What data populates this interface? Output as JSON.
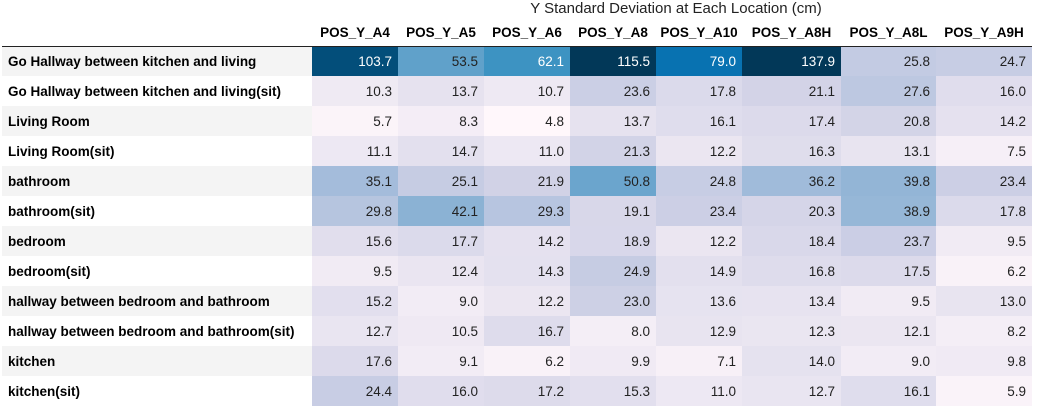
{
  "chart_data": {
    "type": "table",
    "title": "Y Standard Deviation at Each Location (cm)",
    "columns": [
      "POS_Y_A4",
      "POS_Y_A5",
      "POS_Y_A6",
      "POS_Y_A8",
      "POS_Y_A10",
      "POS_Y_A8H",
      "POS_Y_A8L",
      "POS_Y_A9H"
    ],
    "rows": [
      {
        "label": "Go Hallway between kitchen and living",
        "values": [
          103.7,
          53.5,
          62.1,
          115.5,
          79.0,
          137.9,
          25.8,
          24.7
        ]
      },
      {
        "label": "Go Hallway between kitchen and living(sit)",
        "values": [
          10.3,
          13.7,
          10.7,
          23.6,
          17.8,
          21.1,
          27.6,
          16.0
        ]
      },
      {
        "label": "Living Room",
        "values": [
          5.7,
          8.3,
          4.8,
          13.7,
          16.1,
          17.4,
          20.8,
          14.2
        ]
      },
      {
        "label": "Living Room(sit)",
        "values": [
          11.1,
          14.7,
          11.0,
          21.3,
          12.2,
          16.3,
          13.1,
          7.5
        ]
      },
      {
        "label": "bathroom",
        "values": [
          35.1,
          25.1,
          21.9,
          50.8,
          24.8,
          36.2,
          39.8,
          23.4
        ]
      },
      {
        "label": "bathroom(sit)",
        "values": [
          29.8,
          42.1,
          29.3,
          19.1,
          23.4,
          20.3,
          38.9,
          17.8
        ]
      },
      {
        "label": "bedroom",
        "values": [
          15.6,
          17.7,
          14.2,
          18.9,
          12.2,
          18.4,
          23.7,
          9.5
        ]
      },
      {
        "label": "bedroom(sit)",
        "values": [
          9.5,
          12.4,
          14.3,
          24.9,
          14.9,
          16.8,
          17.5,
          6.2
        ]
      },
      {
        "label": "hallway between bedroom and bathroom",
        "values": [
          15.2,
          9.0,
          12.2,
          23.0,
          13.6,
          13.4,
          9.5,
          13.0
        ]
      },
      {
        "label": "hallway between bedroom and bathroom(sit)",
        "values": [
          12.7,
          10.5,
          16.7,
          8.0,
          12.9,
          12.3,
          12.1,
          8.2
        ]
      },
      {
        "label": "kitchen",
        "values": [
          17.6,
          9.1,
          6.2,
          9.9,
          7.1,
          14.0,
          9.0,
          9.8
        ]
      },
      {
        "label": "kitchen(sit)",
        "values": [
          24.4,
          16.0,
          17.2,
          15.3,
          11.0,
          12.7,
          16.1,
          5.9
        ]
      }
    ],
    "colormap": "PuBu",
    "color_low": "#fff7fb",
    "color_high": "#023858"
  }
}
